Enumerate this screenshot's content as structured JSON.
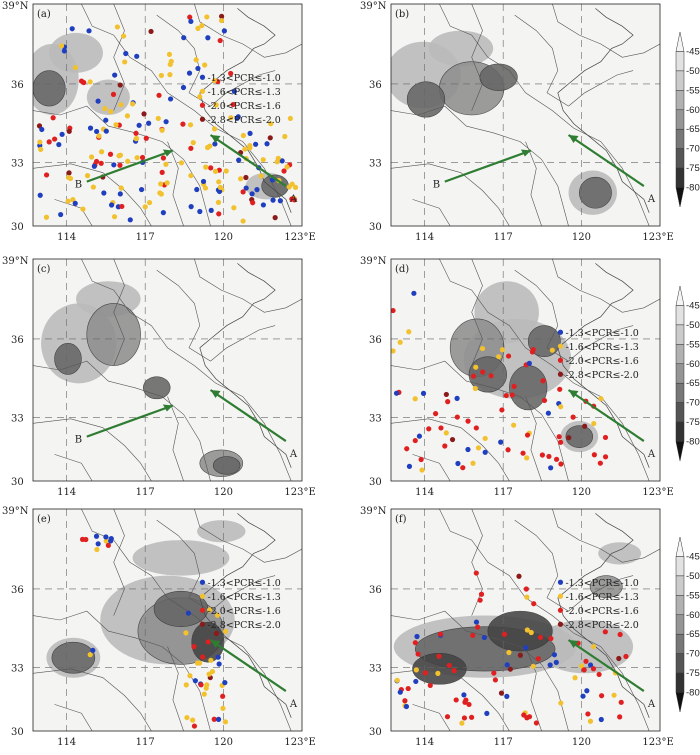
{
  "panels": [
    {
      "id": "a",
      "label": "(a)",
      "legend": true,
      "colorbar": false
    },
    {
      "id": "b",
      "label": "(b)",
      "legend": false,
      "colorbar": true
    },
    {
      "id": "c",
      "label": "(c)",
      "legend": false,
      "colorbar": false
    },
    {
      "id": "d",
      "label": "(d)",
      "legend": true,
      "colorbar": true
    },
    {
      "id": "e",
      "label": "(e)",
      "legend": true,
      "colorbar": false
    },
    {
      "id": "f",
      "label": "(f)",
      "legend": true,
      "colorbar": true
    }
  ],
  "axes": {
    "lat_top": "39°N",
    "lat_ticks": [
      "36",
      "33",
      "30"
    ],
    "lon_ticks": [
      "114",
      "117",
      "120",
      "123°E"
    ]
  },
  "arrows": {
    "A": "A",
    "B": "B",
    "color": "#2e7d32"
  },
  "legend": [
    {
      "text": "-1.3<PCR≤-1.0",
      "color": "#1f3fbf"
    },
    {
      "text": "-1.6<PCR≤-1.3",
      "color": "#f2c12e"
    },
    {
      "text": "-2.0<PCR≤-1.6",
      "color": "#e02020"
    },
    {
      "text": "-2.8<PCR≤-2.0",
      "color": "#8b1a1a"
    }
  ],
  "colorbar": {
    "ticks": [
      "-45",
      "-50",
      "-55",
      "-60",
      "-65",
      "-70",
      "-75",
      "-80"
    ]
  }
}
